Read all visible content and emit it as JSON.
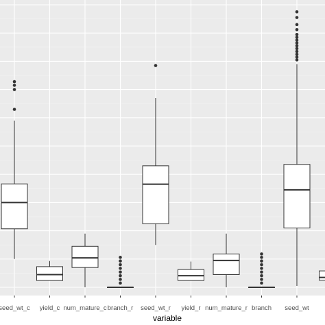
{
  "chart_data": {
    "type": "boxplot",
    "title": "",
    "xlabel": "variable",
    "ylabel": "",
    "grid": true,
    "ylim": [
      0,
      100
    ],
    "categories": [
      "seed_wt_c",
      "yield_c",
      "num_mature_c",
      "branch_r",
      "seed_wt_r",
      "yield_r",
      "num_mature_r",
      "branch",
      "seed_wt",
      ""
    ],
    "category_labels": [
      "seed_wt_c",
      "yield_c",
      "num_mature_c",
      "branch_r",
      "seed_wt_r",
      "yield_r",
      "num_mature_r",
      "branch",
      "seed_wt"
    ],
    "series": [
      {
        "category": "seed_wt_c",
        "min": 10,
        "q1": 20.7,
        "median": 30,
        "q3": 36.6,
        "max": 59,
        "outliers": [
          63,
          70,
          71.5,
          72.8
        ]
      },
      {
        "category": "yield_c",
        "min": 2.4,
        "q1": 2.4,
        "median": 4.5,
        "q3": 7.3,
        "max": 9.3,
        "outliers": []
      },
      {
        "category": "num_mature_c",
        "min": 0,
        "q1": 7,
        "median": 10.4,
        "q3": 14.5,
        "max": 19,
        "outliers": []
      },
      {
        "category": "branch_r",
        "min": 0,
        "q1": 0,
        "median": 0,
        "q3": 0,
        "max": 0,
        "outliers": [
          1.5,
          2.8,
          4.1,
          5.4,
          6.7,
          8,
          9.3,
          10.6
        ]
      },
      {
        "category": "seed_wt_r",
        "min": 15,
        "q1": 22.5,
        "median": 36.5,
        "q3": 43,
        "max": 67,
        "outliers": [
          78.5
        ]
      },
      {
        "category": "yield_r",
        "min": 2.4,
        "q1": 2.4,
        "median": 4.1,
        "q3": 6.3,
        "max": 9.1,
        "outliers": []
      },
      {
        "category": "num_mature_r",
        "min": 0,
        "q1": 4.5,
        "median": 9.5,
        "q3": 11.8,
        "max": 19,
        "outliers": []
      },
      {
        "category": "branch",
        "min": 0,
        "q1": 0,
        "median": 0,
        "q3": 0,
        "max": 0,
        "outliers": [
          1.5,
          2.8,
          4.1,
          5.4,
          6.7,
          8,
          9.3,
          10.6,
          11.8
        ]
      },
      {
        "category": "seed_wt",
        "min": 0.5,
        "q1": 21,
        "median": 34.5,
        "q3": 43.5,
        "max": 79,
        "outliers": [
          80.5,
          81.5,
          82.5,
          83.5,
          84.5,
          85.5,
          86.5,
          87.5,
          88.5,
          89.5,
          91.2,
          93,
          95.5,
          97.5
        ]
      },
      {
        "category": "",
        "min": 2.5,
        "q1": 2.5,
        "median": 3.5,
        "q3": 5.8,
        "max": 5.8,
        "outliers": []
      }
    ]
  }
}
